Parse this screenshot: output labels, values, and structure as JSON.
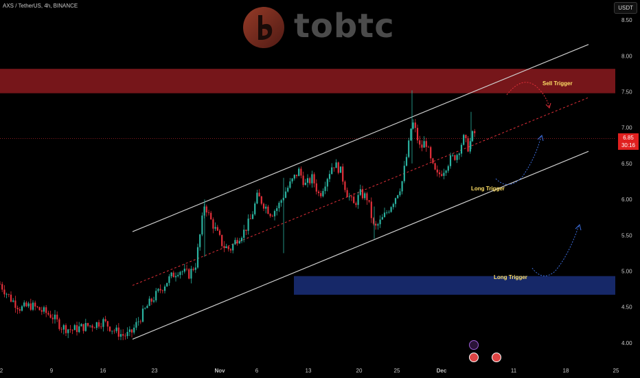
{
  "header": {
    "symbol": "AXS / TetherUS, 4h, BINANCE",
    "quote_currency": "USDT"
  },
  "watermark": {
    "text": "tobtc",
    "icon": "bitcoin-logo-icon"
  },
  "last_price": {
    "price": "6.85",
    "countdown": "30:16"
  },
  "annotations": {
    "sell_trigger": "Sell Trigger",
    "long_trigger_1": "Long Trigger",
    "long_trigger_2": "Long Trigger"
  },
  "colors": {
    "up": "#2bb3a1",
    "down": "#e5303a",
    "sell_zone": "#8b1a1f",
    "buy_zone": "#1a2f7a",
    "trigger_text": "#ffe066"
  },
  "chart_data": {
    "type": "candlestick",
    "x_ticks": [
      "2",
      "9",
      "16",
      "23",
      "Nov",
      "6",
      "13",
      "20",
      "25",
      "Dec",
      "11",
      "18",
      "25"
    ],
    "y_ticks": [
      "8.50",
      "8.00",
      "7.50",
      "7.00",
      "6.50",
      "6.00",
      "5.50",
      "5.00",
      "4.50",
      "4.00"
    ],
    "ylim": [
      3.72,
      8.78
    ],
    "grid": false,
    "legend": "none",
    "zones": [
      {
        "name": "sell_zone",
        "from": 7.48,
        "to": 7.82
      },
      {
        "name": "buy_zone",
        "from": 4.67,
        "to": 4.93
      }
    ],
    "channel": {
      "upper": [
        [
          193,
          5.55
        ],
        [
          857,
          8.16
        ]
      ],
      "lower": [
        [
          193,
          4.05
        ],
        [
          857,
          6.67
        ]
      ],
      "mid": [
        [
          193,
          4.8
        ],
        [
          857,
          7.42
        ]
      ]
    },
    "close_path": [
      [
        0,
        4.82
      ],
      [
        15,
        4.62
      ],
      [
        30,
        4.48
      ],
      [
        45,
        4.52
      ],
      [
        60,
        4.45
      ],
      [
        75,
        4.38
      ],
      [
        90,
        4.22
      ],
      [
        105,
        4.18
      ],
      [
        120,
        4.22
      ],
      [
        135,
        4.25
      ],
      [
        150,
        4.3
      ],
      [
        165,
        4.18
      ],
      [
        180,
        4.1
      ],
      [
        190,
        4.12
      ],
      [
        200,
        4.28
      ],
      [
        215,
        4.52
      ],
      [
        230,
        4.7
      ],
      [
        245,
        4.88
      ],
      [
        260,
        5.02
      ],
      [
        275,
        4.95
      ],
      [
        285,
        5.1
      ],
      [
        292,
        5.55
      ],
      [
        298,
        5.95
      ],
      [
        305,
        5.75
      ],
      [
        315,
        5.55
      ],
      [
        325,
        5.35
      ],
      [
        335,
        5.3
      ],
      [
        345,
        5.45
      ],
      [
        355,
        5.55
      ],
      [
        365,
        5.72
      ],
      [
        375,
        6.05
      ],
      [
        385,
        5.92
      ],
      [
        395,
        5.8
      ],
      [
        405,
        5.9
      ],
      [
        415,
        6.1
      ],
      [
        425,
        6.25
      ],
      [
        435,
        6.4
      ],
      [
        445,
        6.2
      ],
      [
        455,
        6.3
      ],
      [
        465,
        6.05
      ],
      [
        475,
        6.28
      ],
      [
        485,
        6.5
      ],
      [
        495,
        6.42
      ],
      [
        505,
        6.1
      ],
      [
        515,
        5.92
      ],
      [
        525,
        6.08
      ],
      [
        535,
        6.02
      ],
      [
        545,
        5.58
      ],
      [
        555,
        5.7
      ],
      [
        565,
        5.85
      ],
      [
        575,
        6.02
      ],
      [
        585,
        6.22
      ],
      [
        595,
        6.75
      ],
      [
        600,
        7.1
      ],
      [
        605,
        6.95
      ],
      [
        612,
        6.7
      ],
      [
        620,
        6.82
      ],
      [
        628,
        6.5
      ],
      [
        636,
        6.32
      ],
      [
        645,
        6.4
      ],
      [
        655,
        6.55
      ],
      [
        665,
        6.62
      ],
      [
        675,
        6.85
      ],
      [
        682,
        6.72
      ],
      [
        690,
        6.95
      ],
      [
        694,
        6.86
      ]
    ],
    "last_price": 6.85
  }
}
